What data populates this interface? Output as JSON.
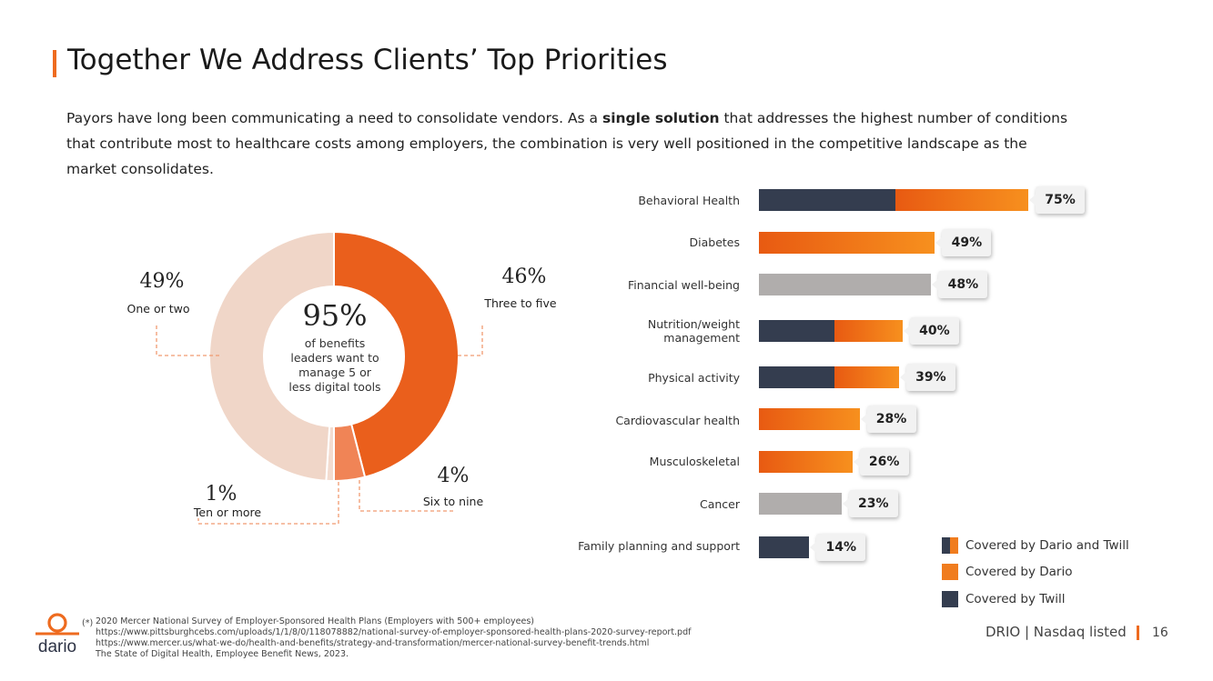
{
  "slide": {
    "title": "Together We Address Clients’ Top Priorities",
    "intro_before": "Payors have long been communicating a need to consolidate vendors. As a ",
    "intro_bold": "single solution",
    "intro_after": " that addresses the highest number of conditions that contribute most to healthcare costs among employers, the combination is very well positioned in the competitive landscape as the market consolidates."
  },
  "chart_data": [
    {
      "type": "pie",
      "variant": "donut",
      "center_value": "95%",
      "center_text": "of benefits leaders want to manage 5 or less digital tools",
      "slices": [
        {
          "label": "Three to five",
          "value": 46,
          "value_label": "46%",
          "color": "#ea5f1c"
        },
        {
          "label": "Six to nine",
          "value": 4,
          "value_label": "4%",
          "color": "#f08456"
        },
        {
          "label": "Ten or more",
          "value": 1,
          "value_label": "1%",
          "color": "#f3dcd0"
        },
        {
          "label": "One or two",
          "value": 49,
          "value_label": "49%",
          "color": "#f0d6c8"
        }
      ]
    },
    {
      "type": "bar",
      "orientation": "horizontal",
      "categories": [
        "Behavioral Health",
        "Diabetes",
        "Financial well-being",
        "Nutrition/weight management",
        "Physical activity",
        "Cardiovascular health",
        "Musculoskeletal",
        "Cancer",
        "Family planning and support"
      ],
      "values": [
        75,
        49,
        48,
        40,
        39,
        28,
        26,
        23,
        14
      ],
      "value_labels": [
        "75%",
        "49%",
        "48%",
        "40%",
        "39%",
        "28%",
        "26%",
        "23%",
        "14%"
      ],
      "coverage": [
        "Covered by Dario and Twill",
        "Covered by Dario",
        "Not covered",
        "Covered by Dario and Twill",
        "Covered by Dario and Twill",
        "Covered by Dario",
        "Covered by Dario",
        "Not covered",
        "Covered by Twill"
      ],
      "twill_share": [
        38,
        0,
        0,
        21,
        21,
        0,
        0,
        0,
        14
      ],
      "xlim": [
        0,
        100
      ],
      "legend": [
        {
          "label": "Covered by Dario and Twill",
          "icon": "split-swatch"
        },
        {
          "label": "Covered by Dario",
          "color": "#f07c1e"
        },
        {
          "label": "Covered by Twill",
          "color": "#343d4f"
        }
      ]
    }
  ],
  "colors": {
    "accent": "#ee6b1f",
    "twill": "#343d4f",
    "dario_start": "#e85a12",
    "dario_end": "#f7901e",
    "uncovered": "#b0adac"
  },
  "footer": {
    "note_marker": "(*)",
    "lines": [
      "2020 Mercer National Survey of Employer-Sponsored Health Plans (Employers with 500+ employees)",
      "https://www.pittsburghcebs.com/uploads/1/1/8/0/118078882/national-survey-of-employer-sponsored-health-plans-2020-survey-report.pdf",
      "https://www.mercer.us/what-we-do/health-and-benefits/strategy-and-transformation/mercer-national-survey-benefit-trends.html",
      "The State of Digital Health, Employee Benefit News, 2023."
    ],
    "brand": "dario",
    "ticker": "DRIO | Nasdaq listed",
    "page": "16"
  }
}
